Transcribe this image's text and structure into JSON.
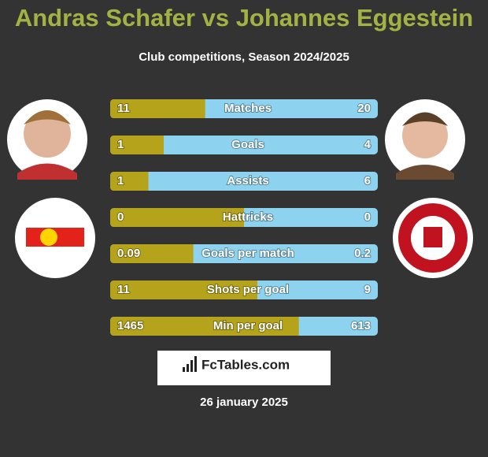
{
  "title": "Andras Schafer vs Johannes Eggestein",
  "subtitle": "Club competitions, Season 2024/2025",
  "rows": [
    {
      "label": "Matches",
      "left": 11,
      "right": 20
    },
    {
      "label": "Goals",
      "left": 1,
      "right": 4
    },
    {
      "label": "Assists",
      "left": 1,
      "right": 6
    },
    {
      "label": "Hattricks",
      "left": 0,
      "right": 0
    },
    {
      "label": "Goals per match",
      "left": 0.09,
      "right": 0.2
    },
    {
      "label": "Shots per goal",
      "left": 11,
      "right": 9
    },
    {
      "label": "Min per goal",
      "left": 1465,
      "right": 613
    }
  ],
  "left_color": "#b5a31c",
  "right_color": "#8dd3ef",
  "brand": "FcTables.com",
  "date": "26 january 2025"
}
